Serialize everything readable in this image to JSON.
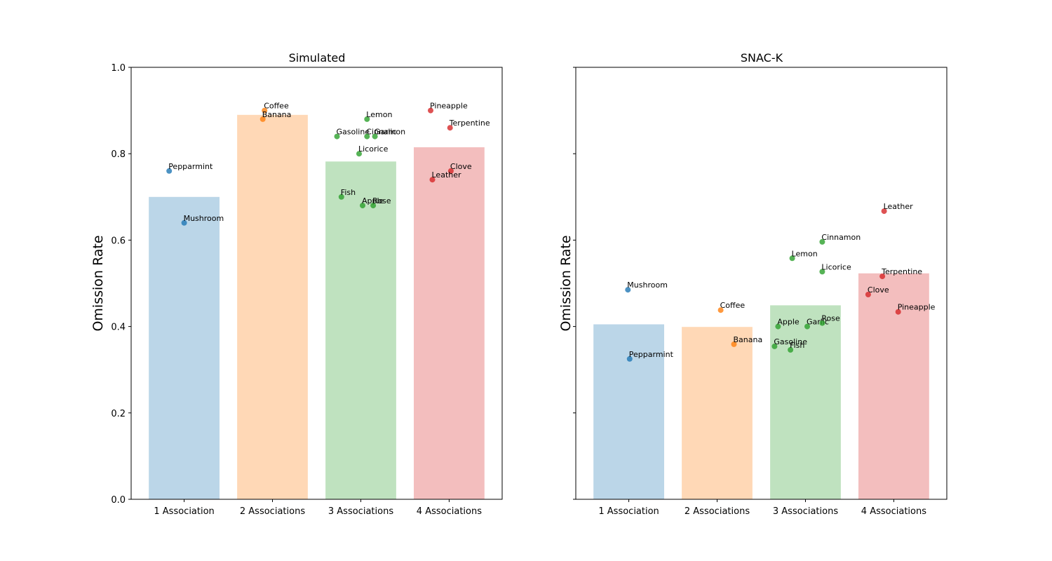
{
  "chart_data": [
    {
      "type": "bar",
      "title": "Simulated",
      "xlabel": "",
      "ylabel": "Omission Rate",
      "ylim": [
        0,
        1.0
      ],
      "yticks": [
        "0.0",
        "0.2",
        "0.4",
        "0.6",
        "0.8",
        "1.0"
      ],
      "ytick_values": [
        0.0,
        0.2,
        0.4,
        0.6,
        0.8,
        1.0
      ],
      "categories": [
        "1 Association",
        "2 Associations",
        "3 Associations",
        "4 Associations"
      ],
      "values": [
        0.7,
        0.89,
        0.782,
        0.815
      ],
      "points": [
        {
          "label": "Pepparmint",
          "category": 0,
          "offset": -0.17,
          "value": 0.76
        },
        {
          "label": "Mushroom",
          "category": 0,
          "offset": 0.0,
          "value": 0.64
        },
        {
          "label": "Coffee",
          "category": 1,
          "offset": -0.09,
          "value": 0.9
        },
        {
          "label": "Banana",
          "category": 1,
          "offset": -0.11,
          "value": 0.88
        },
        {
          "label": "Lemon",
          "category": 2,
          "offset": 0.07,
          "value": 0.88
        },
        {
          "label": "Gasoline",
          "category": 2,
          "offset": -0.27,
          "value": 0.84
        },
        {
          "label": "Cinnamon",
          "category": 2,
          "offset": 0.07,
          "value": 0.84
        },
        {
          "label": "Garlic",
          "category": 2,
          "offset": 0.16,
          "value": 0.84
        },
        {
          "label": "Licorice",
          "category": 2,
          "offset": -0.02,
          "value": 0.8
        },
        {
          "label": "Fish",
          "category": 2,
          "offset": -0.22,
          "value": 0.7
        },
        {
          "label": "Apple",
          "category": 2,
          "offset": 0.02,
          "value": 0.68
        },
        {
          "label": "Rose",
          "category": 2,
          "offset": 0.14,
          "value": 0.68
        },
        {
          "label": "Pineapple",
          "category": 3,
          "offset": -0.21,
          "value": 0.9
        },
        {
          "label": "Terpentine",
          "category": 3,
          "offset": 0.01,
          "value": 0.86
        },
        {
          "label": "Clove",
          "category": 3,
          "offset": 0.02,
          "value": 0.76
        },
        {
          "label": "Leather",
          "category": 3,
          "offset": -0.19,
          "value": 0.74
        }
      ]
    },
    {
      "type": "bar",
      "title": "SNAC-K",
      "xlabel": "",
      "ylabel": "Omission Rate",
      "ylim": [
        0,
        1.0
      ],
      "shared_y": true,
      "categories": [
        "1 Association",
        "2 Associations",
        "3 Associations",
        "4 Associations"
      ],
      "values": [
        0.405,
        0.399,
        0.449,
        0.523
      ],
      "points": [
        {
          "label": "Mushroom",
          "category": 0,
          "offset": -0.01,
          "value": 0.485
        },
        {
          "label": "Pepparmint",
          "category": 0,
          "offset": 0.01,
          "value": 0.325
        },
        {
          "label": "Coffee",
          "category": 1,
          "offset": 0.04,
          "value": 0.438
        },
        {
          "label": "Banana",
          "category": 1,
          "offset": 0.19,
          "value": 0.359
        },
        {
          "label": "Cinnamon",
          "category": 2,
          "offset": 0.19,
          "value": 0.596
        },
        {
          "label": "Lemon",
          "category": 2,
          "offset": -0.15,
          "value": 0.558
        },
        {
          "label": "Licorice",
          "category": 2,
          "offset": 0.19,
          "value": 0.527
        },
        {
          "label": "Apple",
          "category": 2,
          "offset": -0.31,
          "value": 0.4
        },
        {
          "label": "Garlic",
          "category": 2,
          "offset": 0.02,
          "value": 0.4
        },
        {
          "label": "Rose",
          "category": 2,
          "offset": 0.19,
          "value": 0.408
        },
        {
          "label": "Gasoline",
          "category": 2,
          "offset": -0.35,
          "value": 0.354
        },
        {
          "label": "Fish",
          "category": 2,
          "offset": -0.17,
          "value": 0.346
        },
        {
          "label": "Leather",
          "category": 3,
          "offset": -0.11,
          "value": 0.667
        },
        {
          "label": "Terpentine",
          "category": 3,
          "offset": -0.13,
          "value": 0.516
        },
        {
          "label": "Clove",
          "category": 3,
          "offset": -0.29,
          "value": 0.474
        },
        {
          "label": "Pineapple",
          "category": 3,
          "offset": 0.05,
          "value": 0.434
        }
      ]
    }
  ],
  "colors": {
    "series": [
      "#1f77b4",
      "#ff7f0e",
      "#2ca02c",
      "#d62728"
    ],
    "bar_opacity": 0.3,
    "point_opacity": 0.8,
    "axis": "#000000"
  }
}
